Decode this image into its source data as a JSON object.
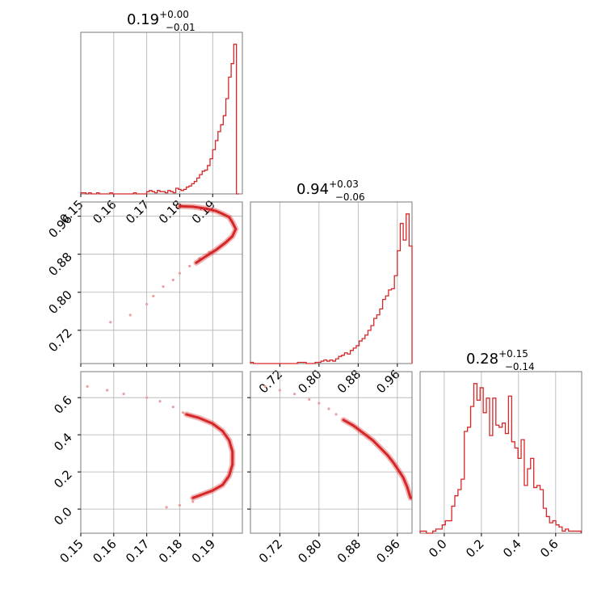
{
  "chart_data": [
    {
      "type": "histogram",
      "panel": "1-1",
      "title_main": "0.19",
      "title_sup": "+0.00",
      "title_sub": "−0.01",
      "xlim": [
        0.15,
        0.199
      ],
      "xticks": [
        0.15,
        0.16,
        0.17,
        0.18,
        0.19
      ],
      "bins": [
        0.15,
        0.1508,
        0.1516,
        0.1524,
        0.1532,
        0.154,
        0.1548,
        0.1556,
        0.1564,
        0.1572,
        0.158,
        0.1588,
        0.1596,
        0.1604,
        0.1612,
        0.162,
        0.1628,
        0.1636,
        0.1644,
        0.1652,
        0.166,
        0.1668,
        0.1676,
        0.1684,
        0.1692,
        0.17,
        0.1708,
        0.1716,
        0.1724,
        0.1732,
        0.174,
        0.1748,
        0.1756,
        0.1764,
        0.1772,
        0.178,
        0.1788,
        0.1796,
        0.1804,
        0.1812,
        0.182,
        0.1828,
        0.1836,
        0.1844,
        0.1852,
        0.186,
        0.1868,
        0.1876,
        0.1884,
        0.1892,
        0.19,
        0.1908,
        0.1916,
        0.1924,
        0.1932,
        0.194,
        0.1948,
        0.1956,
        0.1964,
        0.1972,
        0.198
      ],
      "counts": [
        1,
        1,
        0,
        1,
        0,
        0,
        1,
        0,
        0,
        0,
        0,
        1,
        0,
        0,
        0,
        0,
        0,
        0,
        0,
        0,
        1,
        0,
        0,
        0,
        0,
        2,
        3,
        2,
        1,
        3,
        2,
        2,
        1,
        3,
        2,
        1,
        5,
        4,
        3,
        4,
        6,
        7,
        9,
        11,
        14,
        17,
        20,
        21,
        25,
        31,
        39,
        47,
        55,
        61,
        69,
        84,
        103,
        115,
        132,
        0
      ]
    },
    {
      "type": "histogram",
      "panel": "2-2",
      "title_main": "0.94",
      "title_sup": "+0.03",
      "title_sub": "−0.06",
      "xlim": [
        0.66,
        0.99
      ],
      "xticks": [
        0.72,
        0.8,
        0.88,
        0.96
      ],
      "bins": [
        0.66,
        0.666,
        0.672,
        0.678,
        0.684,
        0.69,
        0.696,
        0.702,
        0.708,
        0.714,
        0.72,
        0.726,
        0.732,
        0.738,
        0.744,
        0.75,
        0.756,
        0.762,
        0.768,
        0.774,
        0.78,
        0.786,
        0.792,
        0.798,
        0.804,
        0.81,
        0.816,
        0.822,
        0.828,
        0.834,
        0.84,
        0.846,
        0.852,
        0.858,
        0.864,
        0.87,
        0.876,
        0.882,
        0.888,
        0.894,
        0.9,
        0.906,
        0.912,
        0.918,
        0.924,
        0.93,
        0.936,
        0.942,
        0.948,
        0.954,
        0.96,
        0.966,
        0.972,
        0.978,
        0.984,
        0.99
      ],
      "counts": [
        1,
        0,
        0,
        0,
        0,
        0,
        0,
        0,
        0,
        0,
        0,
        0,
        0,
        0,
        0,
        0,
        1,
        1,
        1,
        0,
        0,
        0,
        1,
        1,
        2,
        3,
        2,
        3,
        2,
        4,
        6,
        7,
        9,
        8,
        11,
        13,
        15,
        19,
        21,
        24,
        28,
        32,
        38,
        41,
        46,
        54,
        57,
        62,
        63,
        74,
        95,
        118,
        104,
        126,
        99
      ]
    },
    {
      "type": "histogram",
      "panel": "3-3",
      "title_main": "0.28",
      "title_sup": "+0.15",
      "title_sub": "−0.14",
      "xlim": [
        -0.13,
        0.74
      ],
      "xticks": [
        0.0,
        0.2,
        0.4,
        0.6
      ],
      "bins": [
        -0.13,
        -0.113,
        -0.096,
        -0.079,
        -0.062,
        -0.045,
        -0.028,
        -0.011,
        0.006,
        0.023,
        0.04,
        0.057,
        0.074,
        0.091,
        0.108,
        0.125,
        0.142,
        0.159,
        0.176,
        0.193,
        0.21,
        0.227,
        0.244,
        0.261,
        0.278,
        0.295,
        0.312,
        0.329,
        0.346,
        0.363,
        0.38,
        0.397,
        0.414,
        0.431,
        0.448,
        0.465,
        0.482,
        0.499,
        0.516,
        0.533,
        0.55,
        0.567,
        0.584,
        0.601,
        0.618,
        0.635,
        0.652,
        0.669,
        0.686,
        0.703,
        0.72,
        0.737
      ],
      "counts": [
        1,
        1,
        0,
        0,
        1,
        2,
        2,
        4,
        6,
        6,
        13,
        18,
        21,
        26,
        49,
        51,
        61,
        72,
        64,
        70,
        58,
        65,
        47,
        65,
        52,
        51,
        53,
        48,
        66,
        44,
        41,
        36,
        45,
        23,
        31,
        36,
        22,
        23,
        21,
        12,
        8,
        5,
        6,
        4,
        3,
        1,
        2,
        1,
        1,
        1,
        1
      ]
    },
    {
      "type": "scatter",
      "panel": "2-1",
      "xlim": [
        0.15,
        0.199
      ],
      "ylim": [
        0.65,
        0.99
      ],
      "xticks": [
        0.15,
        0.16,
        0.17,
        0.18,
        0.19
      ],
      "yticks": [
        0.72,
        0.8,
        0.88,
        0.96
      ],
      "ridge_x": [
        0.18,
        0.184,
        0.188,
        0.191,
        0.193,
        0.195,
        0.196,
        0.197,
        0.196,
        0.194,
        0.191,
        0.188,
        0.185
      ],
      "ridge_y": [
        0.981,
        0.98,
        0.976,
        0.971,
        0.965,
        0.958,
        0.947,
        0.933,
        0.918,
        0.905,
        0.889,
        0.876,
        0.862
      ],
      "tail_x": [
        0.159,
        0.165,
        0.17,
        0.172,
        0.175,
        0.178,
        0.18,
        0.183,
        0.186,
        0.189
      ],
      "tail_y": [
        0.737,
        0.752,
        0.775,
        0.792,
        0.812,
        0.826,
        0.84,
        0.855,
        0.871,
        0.884
      ]
    },
    {
      "type": "scatter",
      "panel": "3-1",
      "xlim": [
        0.15,
        0.199
      ],
      "ylim": [
        -0.13,
        0.74
      ],
      "xticks": [
        0.15,
        0.16,
        0.17,
        0.18,
        0.19
      ],
      "yticks": [
        0.0,
        0.2,
        0.4,
        0.6
      ],
      "ridge_x": [
        0.182,
        0.186,
        0.19,
        0.193,
        0.195,
        0.196,
        0.196,
        0.195,
        0.193,
        0.19,
        0.187,
        0.184
      ],
      "ridge_y": [
        0.51,
        0.49,
        0.46,
        0.42,
        0.37,
        0.31,
        0.24,
        0.18,
        0.13,
        0.1,
        0.08,
        0.06
      ],
      "tail_x": [
        0.152,
        0.158,
        0.163,
        0.17,
        0.174,
        0.178,
        0.181,
        0.176,
        0.18,
        0.184
      ],
      "tail_y": [
        0.66,
        0.64,
        0.62,
        0.6,
        0.58,
        0.55,
        0.52,
        0.01,
        0.02,
        0.04
      ]
    },
    {
      "type": "scatter",
      "panel": "3-2",
      "xlim": [
        0.66,
        0.99
      ],
      "ylim": [
        -0.13,
        0.74
      ],
      "xticks": [
        0.72,
        0.8,
        0.88,
        0.96
      ],
      "yticks": [
        0.0,
        0.2,
        0.4,
        0.6
      ],
      "ridge_x": [
        0.85,
        0.87,
        0.89,
        0.91,
        0.925,
        0.94,
        0.952,
        0.962,
        0.972,
        0.98,
        0.987
      ],
      "ridge_y": [
        0.48,
        0.45,
        0.41,
        0.37,
        0.33,
        0.29,
        0.25,
        0.21,
        0.17,
        0.12,
        0.06
      ],
      "tail_x": [
        0.69,
        0.72,
        0.75,
        0.78,
        0.8,
        0.82,
        0.835
      ],
      "tail_y": [
        0.66,
        0.64,
        0.62,
        0.59,
        0.57,
        0.54,
        0.51
      ]
    }
  ],
  "colors": {
    "line": "#d62728",
    "points": "#e8a0a2",
    "frame": "#7a7a7a",
    "grid": "#b0b0b0"
  }
}
